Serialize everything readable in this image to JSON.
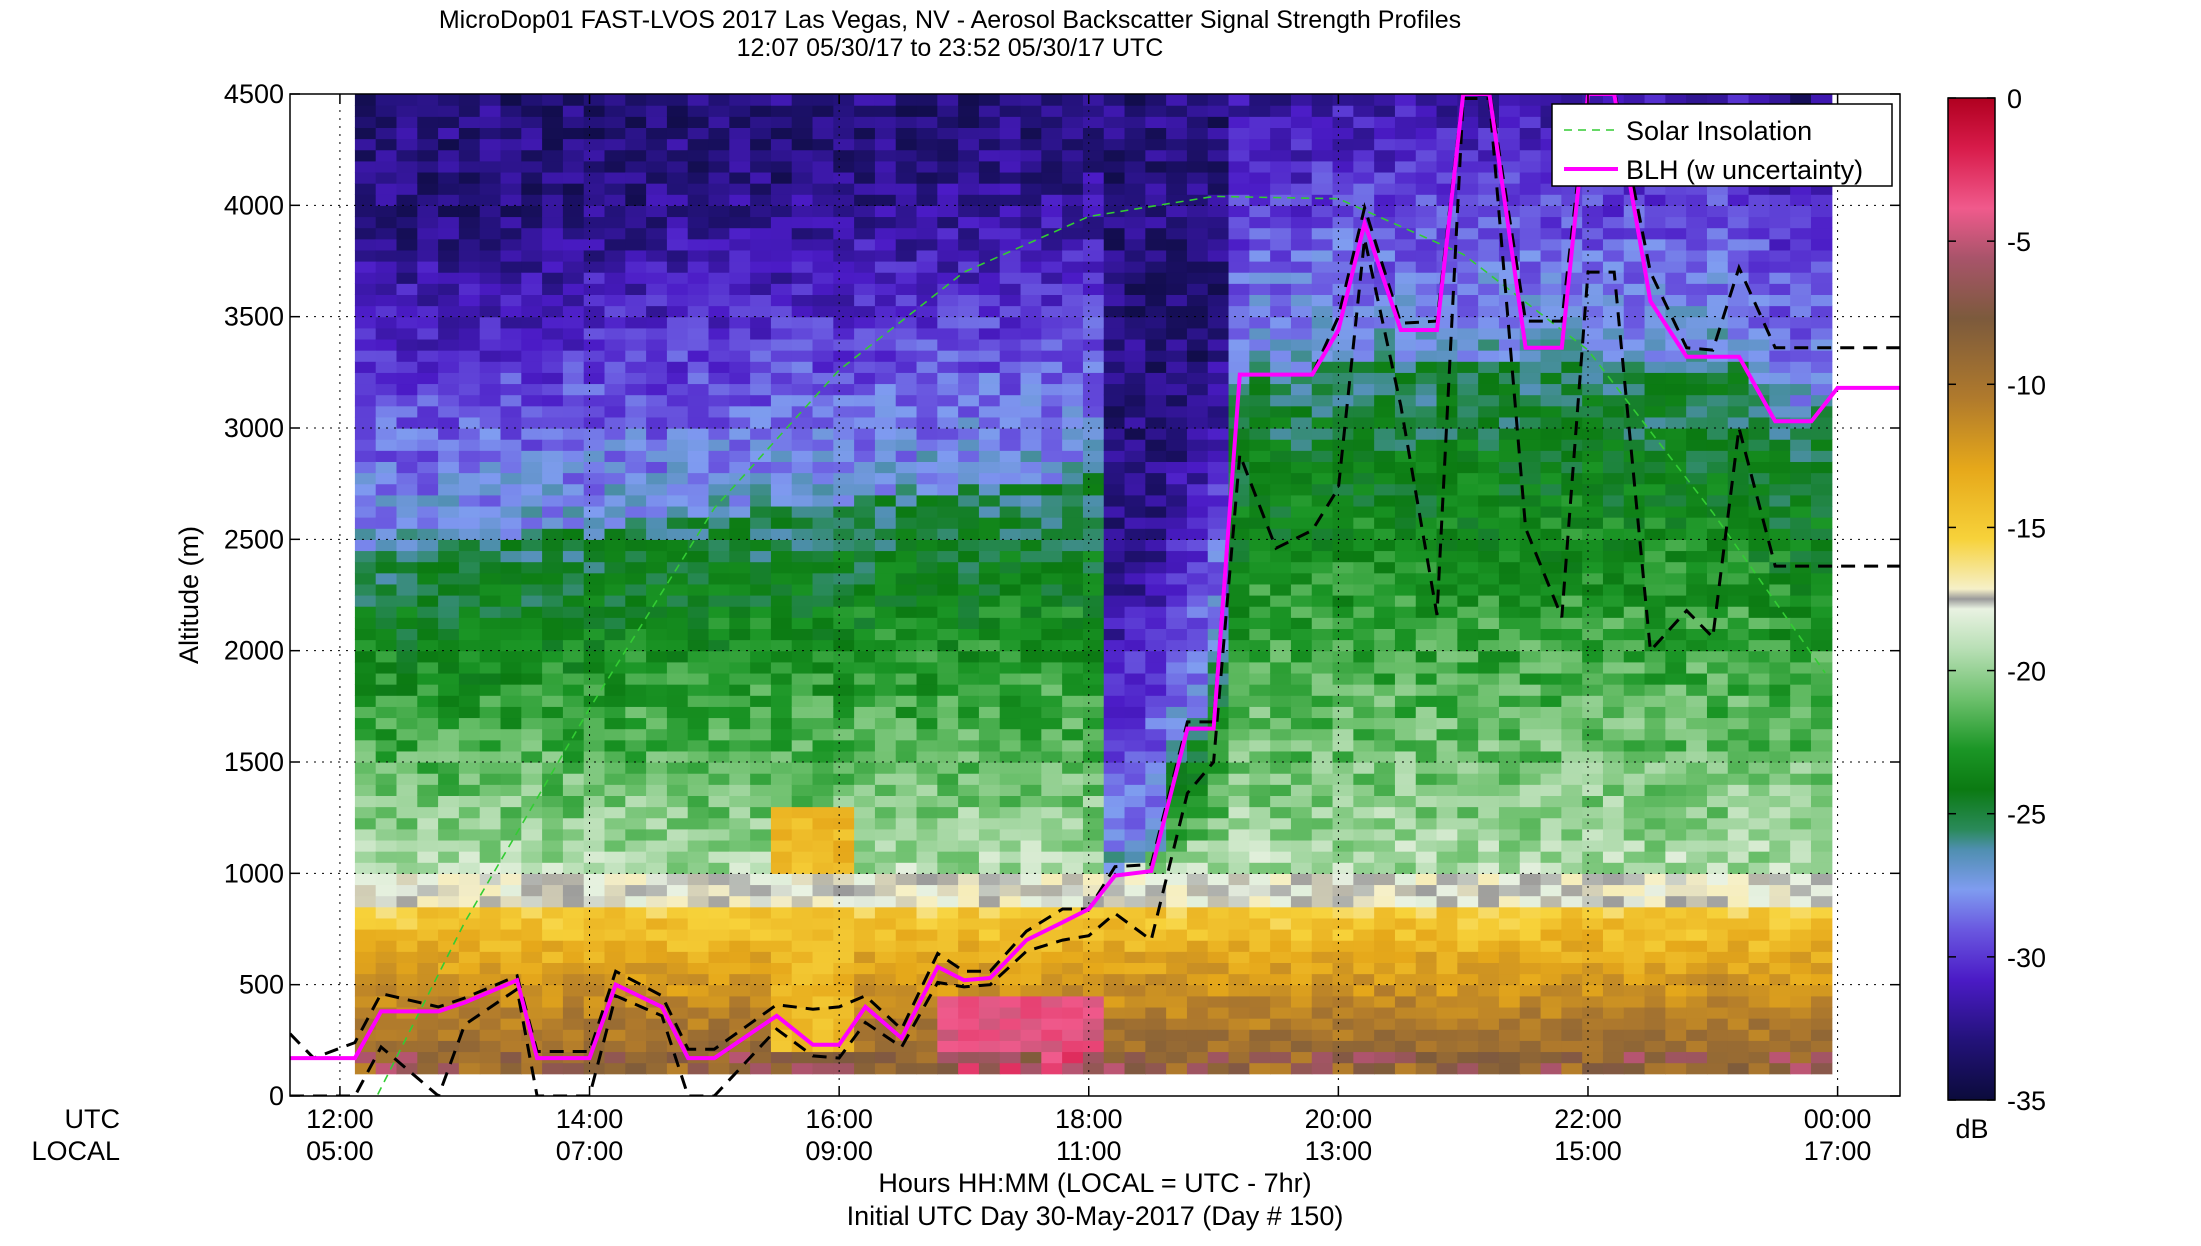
{
  "chart_data": {
    "type": "heatmap",
    "title": "MicroDop01 FAST-LVOS 2017 Las Vegas, NV - Aerosol Backscatter Signal Strength Profiles",
    "subtitle": "12:07 05/30/17 to 23:52 05/30/17  UTC",
    "ylabel": "Altitude (m)",
    "xlabel": "Hours HH:MM  (LOCAL = UTC - 7hr)",
    "xlabel2": "Initial UTC Day 30-May-2017 (Day # 150)",
    "x_row_label_utc": "UTC",
    "x_row_label_local": "LOCAL",
    "xlim_hours": [
      11.6,
      24.5
    ],
    "ylim": [
      0,
      4500
    ],
    "yticks": [
      0,
      500,
      1000,
      1500,
      2000,
      2500,
      3000,
      3500,
      4000,
      4500
    ],
    "xticks": [
      {
        "h": 12,
        "utc": "12:00",
        "local": "05:00"
      },
      {
        "h": 14,
        "utc": "14:00",
        "local": "07:00"
      },
      {
        "h": 16,
        "utc": "16:00",
        "local": "09:00"
      },
      {
        "h": 18,
        "utc": "18:00",
        "local": "11:00"
      },
      {
        "h": 20,
        "utc": "20:00",
        "local": "13:00"
      },
      {
        "h": 22,
        "utc": "22:00",
        "local": "15:00"
      },
      {
        "h": 24,
        "utc": "00:00",
        "local": "17:00"
      }
    ],
    "colorbar": {
      "label": "dB",
      "range": [
        -35,
        0
      ],
      "ticks": [
        0,
        -5,
        -10,
        -15,
        -20,
        -25,
        -30,
        -35
      ]
    },
    "legend": {
      "placement": "top-right",
      "entries": [
        {
          "name": "Solar Insolation",
          "style": "dashed",
          "color": "#33cc33"
        },
        {
          "name": "BLH (w uncertainty)",
          "style": "solid",
          "color": "#ff00ff"
        }
      ]
    },
    "data_extent_hours": [
      12.12,
      23.87
    ],
    "blh": {
      "x": [
        11.6,
        12.12,
        12.33,
        12.79,
        13.0,
        13.42,
        13.58,
        13.79,
        14.0,
        14.21,
        14.58,
        14.79,
        15.0,
        15.5,
        15.79,
        16.0,
        16.21,
        16.5,
        16.79,
        17.0,
        17.21,
        17.5,
        17.79,
        18.0,
        18.21,
        18.5,
        18.79,
        19.0,
        19.21,
        19.5,
        19.79,
        20.0,
        20.21,
        20.5,
        20.79,
        21.0,
        21.21,
        21.5,
        21.79,
        22.0,
        22.21,
        22.5,
        22.79,
        23.0,
        23.21,
        23.5,
        23.79,
        24.0,
        24.21,
        24.5
      ],
      "y": [
        170,
        170,
        380,
        380,
        420,
        520,
        170,
        170,
        170,
        500,
        400,
        170,
        170,
        360,
        230,
        230,
        400,
        260,
        580,
        520,
        530,
        700,
        780,
        840,
        990,
        1010,
        1650,
        1650,
        3240,
        3240,
        3240,
        3440,
        3920,
        3440,
        3440,
        4500,
        4500,
        3360,
        3360,
        4500,
        4500,
        3570,
        3320,
        3320,
        3320,
        3030,
        3030,
        3180,
        3180,
        3180
      ]
    },
    "blh_upper": {
      "x": [
        11.6,
        11.79,
        12.12,
        12.33,
        12.79,
        13.0,
        13.42,
        13.58,
        14.0,
        14.21,
        14.58,
        14.79,
        15.0,
        15.5,
        15.79,
        16.0,
        16.21,
        16.5,
        16.79,
        17.0,
        17.21,
        17.5,
        17.79,
        18.0,
        18.21,
        18.5,
        18.79,
        19.0,
        19.21,
        19.5,
        19.79,
        20.0,
        20.21,
        20.5,
        20.79,
        21.0,
        21.21,
        21.5,
        21.79,
        22.0,
        22.21,
        22.5,
        22.79,
        23.0,
        23.21,
        23.5,
        23.79,
        24.0,
        24.21,
        24.5
      ],
      "y": [
        280,
        170,
        240,
        460,
        400,
        440,
        540,
        200,
        200,
        560,
        450,
        210,
        210,
        410,
        390,
        400,
        450,
        300,
        640,
        560,
        560,
        740,
        840,
        840,
        1030,
        1040,
        1680,
        1680,
        3240,
        3240,
        3240,
        3500,
        3990,
        3470,
        3480,
        4520,
        4520,
        3480,
        3480,
        4520,
        4520,
        3700,
        3360,
        3350,
        3720,
        3360,
        3360,
        3360,
        3360,
        3360
      ]
    },
    "blh_lower": {
      "x": [
        11.6,
        11.79,
        12.12,
        12.33,
        12.79,
        13.0,
        13.42,
        13.58,
        14.0,
        14.21,
        14.58,
        14.79,
        15.0,
        15.5,
        15.79,
        16.0,
        16.21,
        16.5,
        16.79,
        17.0,
        17.21,
        17.5,
        17.79,
        18.0,
        18.21,
        18.5,
        18.79,
        19.0,
        19.21,
        19.5,
        19.79,
        20.0,
        20.21,
        20.5,
        20.79,
        21.0,
        21.21,
        21.5,
        21.79,
        22.0,
        22.21,
        22.5,
        22.79,
        23.0,
        23.21,
        23.5,
        23.79,
        24.0,
        24.21,
        24.5
      ],
      "y": [
        0,
        0,
        0,
        220,
        0,
        320,
        480,
        0,
        0,
        450,
        360,
        0,
        0,
        300,
        180,
        170,
        330,
        220,
        510,
        490,
        500,
        650,
        700,
        720,
        820,
        700,
        1360,
        1500,
        2880,
        2460,
        2540,
        2730,
        3850,
        3100,
        2160,
        4480,
        4480,
        2550,
        2150,
        3700,
        3700,
        2000,
        2180,
        2060,
        3000,
        2380,
        2380,
        2380,
        2380,
        2380
      ]
    },
    "solar_insolation_curve": {
      "x": [
        12.0,
        13.0,
        14.0,
        15.0,
        16.0,
        17.0,
        18.0,
        19.0,
        20.0,
        21.0,
        22.0,
        23.0,
        23.9
      ],
      "y": [
        -330,
        780,
        1740,
        2640,
        3260,
        3700,
        3950,
        4040,
        4030,
        3780,
        3350,
        2620,
        1900
      ]
    }
  }
}
